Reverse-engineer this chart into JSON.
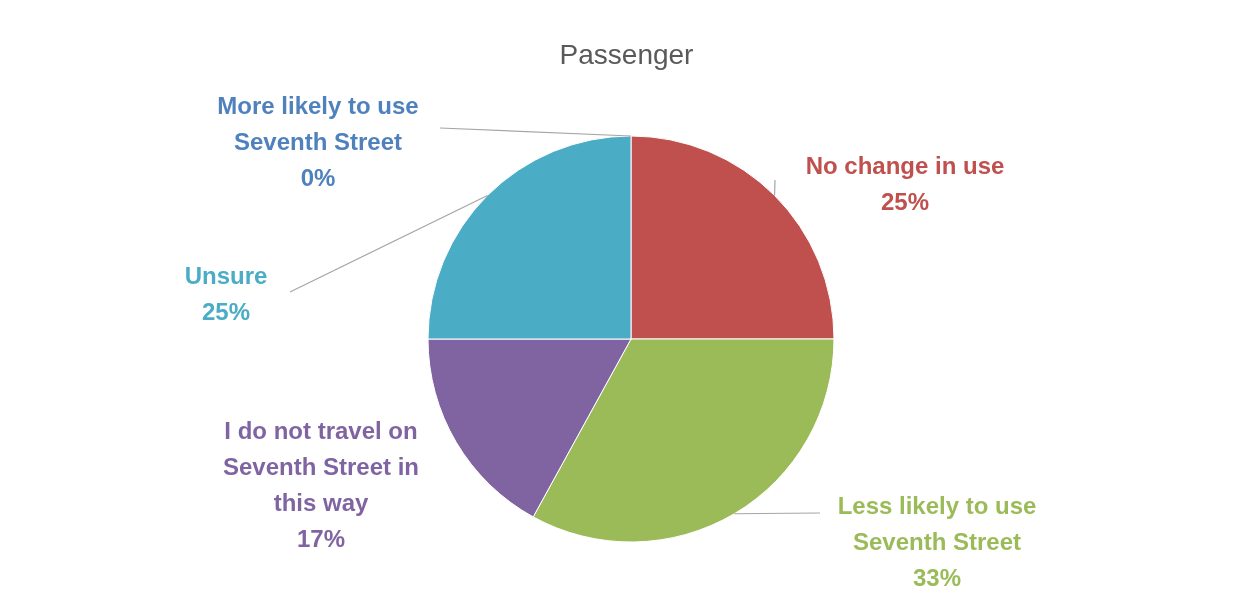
{
  "chart_data": {
    "type": "pie",
    "title": "Passenger",
    "categories": [
      "More likely to use Seventh Street",
      "No change in use",
      "Less likely to use Seventh Street",
      "I do not travel on Seventh Street in this way",
      "Unsure"
    ],
    "values": [
      0,
      25,
      33,
      17,
      25
    ],
    "value_labels": [
      "0%",
      "25%",
      "33%",
      "17%",
      "25%"
    ],
    "colors": [
      "#4f81bd",
      "#c0504d",
      "#9bbb59",
      "#8064a2",
      "#4bacc6"
    ],
    "legend": false
  }
}
